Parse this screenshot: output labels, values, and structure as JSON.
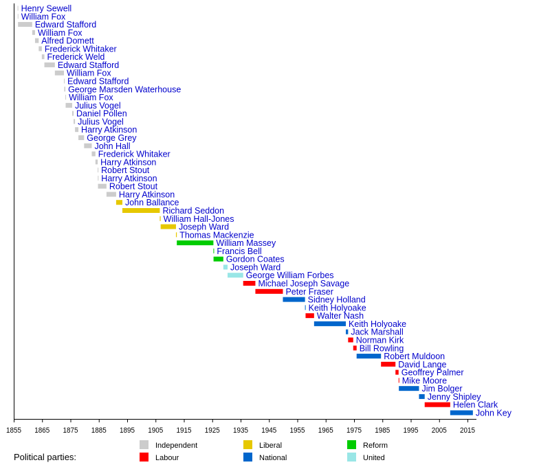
{
  "chart_data": {
    "type": "timeline",
    "xlim": [
      1855,
      2018
    ],
    "x_ticks": [
      1855,
      1865,
      1875,
      1885,
      1895,
      1905,
      1915,
      1925,
      1935,
      1945,
      1955,
      1965,
      1975,
      1985,
      1995,
      2005,
      2015
    ],
    "parties": [
      {
        "name": "Independent",
        "color": "#cccccc"
      },
      {
        "name": "Liberal",
        "color": "#e6c800"
      },
      {
        "name": "Reform",
        "color": "#00cc00"
      },
      {
        "name": "Labour",
        "color": "#ff0000"
      },
      {
        "name": "National",
        "color": "#0066cc"
      },
      {
        "name": "United",
        "color": "#99e6e6"
      }
    ],
    "legend_title": "Political parties:",
    "legend_placement": "bottom",
    "rows": [
      {
        "name": "Henry Sewell",
        "start": 1856.35,
        "end": 1856.39,
        "party": "Independent"
      },
      {
        "name": "William Fox",
        "start": 1856.39,
        "end": 1856.45,
        "party": "Independent"
      },
      {
        "name": "Edward Stafford",
        "start": 1856.5,
        "end": 1861.5,
        "party": "Independent"
      },
      {
        "name": "William Fox",
        "start": 1861.5,
        "end": 1862.5,
        "party": "Independent"
      },
      {
        "name": "Alfred Domett",
        "start": 1862.5,
        "end": 1863.8,
        "party": "Independent"
      },
      {
        "name": "Frederick Whitaker",
        "start": 1863.8,
        "end": 1864.9,
        "party": "Independent"
      },
      {
        "name": "Frederick Weld",
        "start": 1864.9,
        "end": 1865.8,
        "party": "Independent"
      },
      {
        "name": "Edward Stafford",
        "start": 1865.8,
        "end": 1869.5,
        "party": "Independent"
      },
      {
        "name": "William Fox",
        "start": 1869.5,
        "end": 1872.7,
        "party": "Independent"
      },
      {
        "name": "Edward Stafford",
        "start": 1872.7,
        "end": 1872.8,
        "party": "Independent"
      },
      {
        "name": "George Marsden Waterhouse",
        "start": 1872.8,
        "end": 1873.2,
        "party": "Independent"
      },
      {
        "name": "William Fox",
        "start": 1873.2,
        "end": 1873.3,
        "party": "Independent"
      },
      {
        "name": "Julius Vogel",
        "start": 1873.3,
        "end": 1875.6,
        "party": "Independent"
      },
      {
        "name": "Daniel Pollen",
        "start": 1875.6,
        "end": 1876.1,
        "party": "Independent"
      },
      {
        "name": "Julius Vogel",
        "start": 1876.1,
        "end": 1876.6,
        "party": "Independent"
      },
      {
        "name": "Harry Atkinson",
        "start": 1876.6,
        "end": 1877.8,
        "party": "Independent"
      },
      {
        "name": "George Grey",
        "start": 1877.8,
        "end": 1879.8,
        "party": "Independent"
      },
      {
        "name": "John Hall",
        "start": 1879.8,
        "end": 1882.5,
        "party": "Independent"
      },
      {
        "name": "Frederick Whitaker",
        "start": 1882.5,
        "end": 1883.8,
        "party": "Independent"
      },
      {
        "name": "Harry Atkinson",
        "start": 1883.8,
        "end": 1884.6,
        "party": "Independent"
      },
      {
        "name": "Robert Stout",
        "start": 1884.6,
        "end": 1884.65,
        "party": "Independent"
      },
      {
        "name": "Harry Atkinson",
        "start": 1884.65,
        "end": 1884.7,
        "party": "Independent"
      },
      {
        "name": "Robert Stout",
        "start": 1884.7,
        "end": 1887.7,
        "party": "Independent"
      },
      {
        "name": "Harry Atkinson",
        "start": 1887.7,
        "end": 1891.1,
        "party": "Independent"
      },
      {
        "name": "John Ballance",
        "start": 1891.1,
        "end": 1893.3,
        "party": "Liberal"
      },
      {
        "name": "Richard Seddon",
        "start": 1893.3,
        "end": 1906.5,
        "party": "Liberal"
      },
      {
        "name": "William Hall-Jones",
        "start": 1906.5,
        "end": 1906.8,
        "party": "Liberal"
      },
      {
        "name": "Joseph Ward",
        "start": 1906.8,
        "end": 1912.2,
        "party": "Liberal"
      },
      {
        "name": "Thomas Mackenzie",
        "start": 1912.2,
        "end": 1912.5,
        "party": "Liberal"
      },
      {
        "name": "William Massey",
        "start": 1912.5,
        "end": 1925.4,
        "party": "Reform"
      },
      {
        "name": "Francis Bell",
        "start": 1925.4,
        "end": 1925.45,
        "party": "Reform"
      },
      {
        "name": "Gordon Coates",
        "start": 1925.45,
        "end": 1928.9,
        "party": "Reform"
      },
      {
        "name": "Joseph Ward",
        "start": 1928.9,
        "end": 1930.4,
        "party": "United"
      },
      {
        "name": "George William Forbes",
        "start": 1930.4,
        "end": 1935.9,
        "party": "United"
      },
      {
        "name": "Michael Joseph Savage",
        "start": 1935.9,
        "end": 1940.2,
        "party": "Labour"
      },
      {
        "name": "Peter Fraser",
        "start": 1940.2,
        "end": 1949.9,
        "party": "Labour"
      },
      {
        "name": "Sidney Holland",
        "start": 1949.9,
        "end": 1957.7,
        "party": "National"
      },
      {
        "name": "Keith Holyoake",
        "start": 1957.7,
        "end": 1957.9,
        "party": "National"
      },
      {
        "name": "Walter Nash",
        "start": 1957.9,
        "end": 1960.9,
        "party": "Labour"
      },
      {
        "name": "Keith Holyoake",
        "start": 1960.9,
        "end": 1972.1,
        "party": "National"
      },
      {
        "name": "Jack Marshall",
        "start": 1972.1,
        "end": 1972.9,
        "party": "National"
      },
      {
        "name": "Norman Kirk",
        "start": 1972.9,
        "end": 1974.7,
        "party": "Labour"
      },
      {
        "name": "Bill Rowling",
        "start": 1974.7,
        "end": 1975.9,
        "party": "Labour"
      },
      {
        "name": "Robert Muldoon",
        "start": 1975.9,
        "end": 1984.5,
        "party": "National"
      },
      {
        "name": "David Lange",
        "start": 1984.5,
        "end": 1989.6,
        "party": "Labour"
      },
      {
        "name": "Geoffrey Palmer",
        "start": 1989.6,
        "end": 1990.7,
        "party": "Labour"
      },
      {
        "name": "Mike Moore",
        "start": 1990.7,
        "end": 1990.8,
        "party": "Labour"
      },
      {
        "name": "Jim Bolger",
        "start": 1990.8,
        "end": 1997.9,
        "party": "National"
      },
      {
        "name": "Jenny Shipley",
        "start": 1997.9,
        "end": 1999.9,
        "party": "National"
      },
      {
        "name": "Helen Clark",
        "start": 1999.9,
        "end": 2008.9,
        "party": "Labour"
      },
      {
        "name": "John Key",
        "start": 2008.9,
        "end": 2016.9,
        "party": "National"
      }
    ]
  }
}
